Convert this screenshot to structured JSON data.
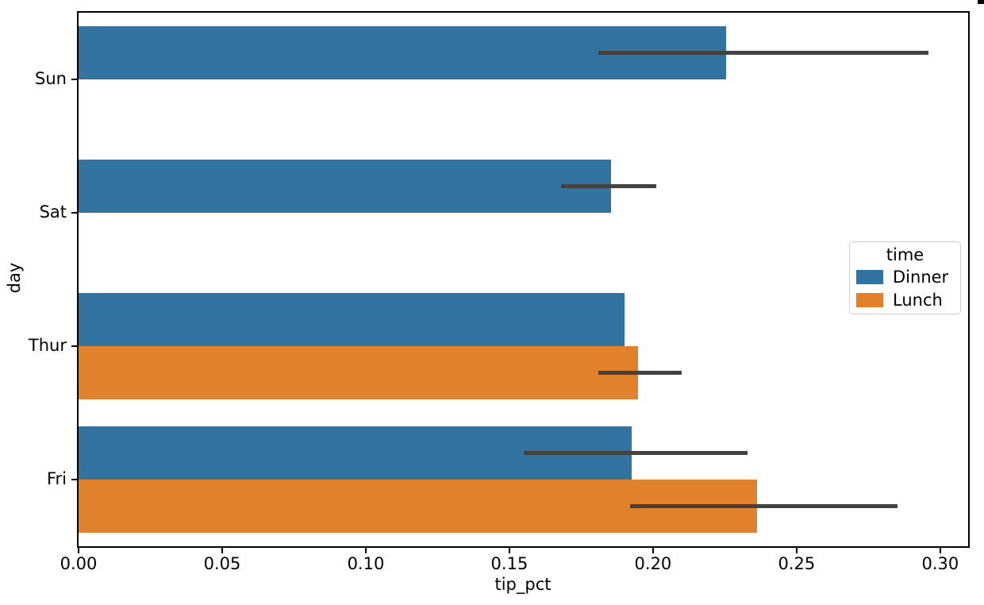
{
  "chart_data": {
    "type": "bar",
    "orientation": "horizontal",
    "title": "",
    "xlabel": "tip_pct",
    "ylabel": "day",
    "categories": [
      "Sun",
      "Sat",
      "Thur",
      "Fri"
    ],
    "series": [
      {
        "name": "Dinner",
        "color": "#3274a1",
        "values": [
          0.2255,
          0.1853,
          0.1901,
          0.1926
        ],
        "error_intervals": [
          [
            0.181,
            0.296
          ],
          [
            0.168,
            0.201
          ],
          null,
          [
            0.155,
            0.233
          ]
        ]
      },
      {
        "name": "Lunch",
        "color": "#e1812c",
        "values": [
          null,
          null,
          0.1949,
          0.2361
        ],
        "error_intervals": [
          null,
          null,
          [
            0.181,
            0.21
          ],
          [
            0.192,
            0.285
          ]
        ]
      }
    ],
    "xlim": [
      0,
      0.3097
    ],
    "xticks": [
      0.0,
      0.05,
      0.1,
      0.15,
      0.2,
      0.25,
      0.3
    ],
    "xtick_labels": [
      "0.00",
      "0.05",
      "0.10",
      "0.15",
      "0.20",
      "0.25",
      "0.30"
    ],
    "error_bar_color": "#424242",
    "grid": false,
    "legend": {
      "title": "time",
      "position": "center-right"
    }
  }
}
